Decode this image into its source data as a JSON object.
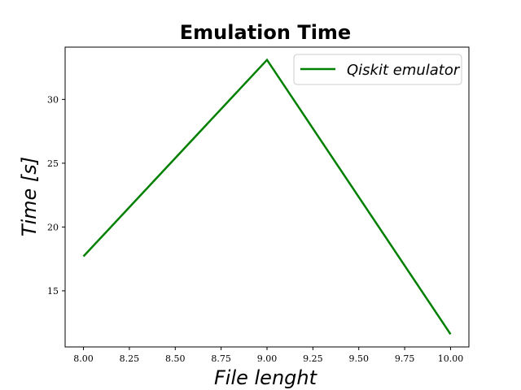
{
  "chart_data": {
    "type": "line",
    "title": "Emulation Time",
    "xlabel": "File lenght",
    "ylabel": "Time [s]",
    "xlim": [
      7.9,
      10.1
    ],
    "ylim": [
      10.6,
      34.1
    ],
    "xticks": [
      8.0,
      8.25,
      8.5,
      8.75,
      9.0,
      9.25,
      9.5,
      9.75,
      10.0
    ],
    "xtick_labels": [
      "8.00",
      "8.25",
      "8.50",
      "8.75",
      "9.00",
      "9.25",
      "9.50",
      "9.75",
      "10.00"
    ],
    "yticks": [
      15,
      20,
      25,
      30
    ],
    "ytick_labels": [
      "15",
      "20",
      "25",
      "30"
    ],
    "grid": false,
    "legend_position": "top-right",
    "series": [
      {
        "name": "Qiskit emulator",
        "color": "#008000",
        "x": [
          8.0,
          9.0,
          10.0
        ],
        "y": [
          17.7,
          33.1,
          11.6
        ]
      }
    ]
  }
}
